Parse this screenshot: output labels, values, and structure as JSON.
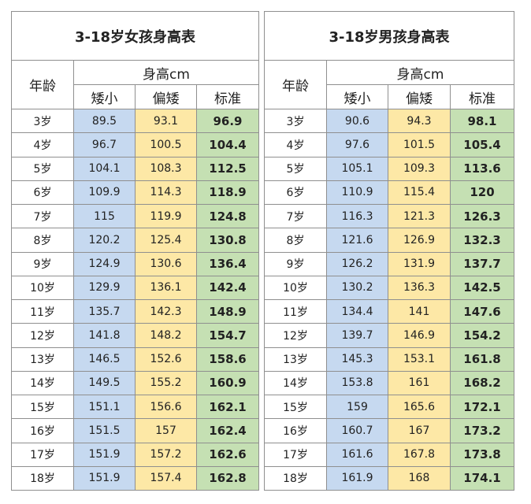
{
  "tables": [
    {
      "title": "3-18岁女孩身高表",
      "age_header": "年龄",
      "group_header": "身高cm",
      "columns": [
        "矮小",
        "偏矮",
        "标准"
      ],
      "rows": [
        [
          "3岁",
          89.5,
          93.1,
          96.9
        ],
        [
          "4岁",
          96.7,
          100.5,
          104.4
        ],
        [
          "5岁",
          104.1,
          108.3,
          112.5
        ],
        [
          "6岁",
          109.9,
          114.3,
          118.9
        ],
        [
          "7岁",
          115,
          119.9,
          124.8
        ],
        [
          "8岁",
          120.2,
          125.4,
          130.8
        ],
        [
          "9岁",
          124.9,
          130.6,
          136.4
        ],
        [
          "10岁",
          129.9,
          136.1,
          142.4
        ],
        [
          "11岁",
          135.7,
          142.3,
          148.9
        ],
        [
          "12岁",
          141.8,
          148.2,
          154.7
        ],
        [
          "13岁",
          146.5,
          152.6,
          158.6
        ],
        [
          "14岁",
          149.5,
          155.2,
          160.9
        ],
        [
          "15岁",
          151.1,
          156.6,
          162.1
        ],
        [
          "16岁",
          151.5,
          157,
          162.4
        ],
        [
          "17岁",
          151.9,
          157.2,
          162.6
        ],
        [
          "18岁",
          151.9,
          157.4,
          162.8
        ]
      ]
    },
    {
      "title": "3-18岁男孩身高表",
      "age_header": "年龄",
      "group_header": "身高cm",
      "columns": [
        "矮小",
        "偏矮",
        "标准"
      ],
      "rows": [
        [
          "3岁",
          90.6,
          94.3,
          98.1
        ],
        [
          "4岁",
          97.6,
          101.5,
          105.4
        ],
        [
          "5岁",
          105.1,
          109.3,
          113.6
        ],
        [
          "6岁",
          110.9,
          115.4,
          120
        ],
        [
          "7岁",
          116.3,
          121.3,
          126.3
        ],
        [
          "8岁",
          121.6,
          126.9,
          132.3
        ],
        [
          "9岁",
          126.2,
          131.9,
          137.7
        ],
        [
          "10岁",
          130.2,
          136.3,
          142.5
        ],
        [
          "11岁",
          134.4,
          141,
          147.6
        ],
        [
          "12岁",
          139.7,
          146.9,
          154.2
        ],
        [
          "13岁",
          145.3,
          153.1,
          161.8
        ],
        [
          "14岁",
          153.8,
          161,
          168.2
        ],
        [
          "15岁",
          159,
          165.6,
          172.1
        ],
        [
          "16岁",
          160.7,
          167,
          173.2
        ],
        [
          "17岁",
          161.6,
          167.8,
          173.8
        ],
        [
          "18岁",
          161.9,
          168,
          174.1
        ]
      ]
    }
  ]
}
